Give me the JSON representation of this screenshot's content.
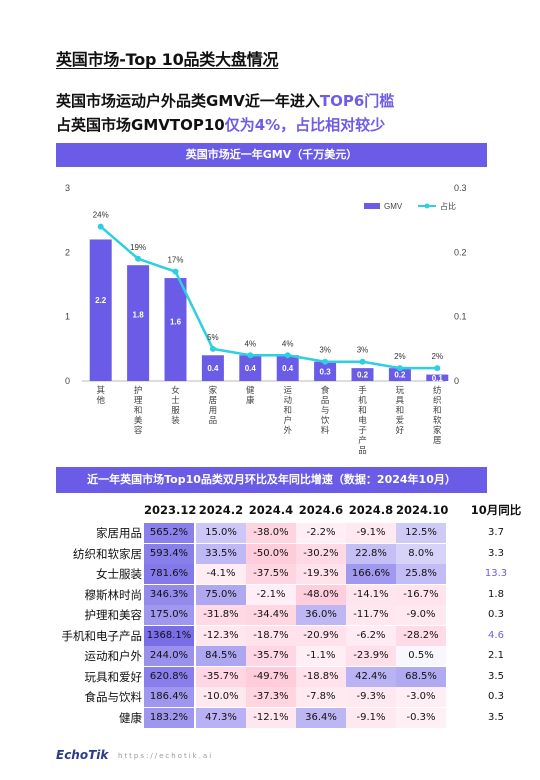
{
  "page_title": "英国市场-Top 10品类大盘情况",
  "headline": {
    "line1_plain": "英国市场运动户外品类GMV近一年进入",
    "line1_highlight": "TOP6门槛",
    "line2_plain": "占英国市场GMVTOP10",
    "line2_highlight": "仅为4%，占比相对较少"
  },
  "chart_band_title": "英国市场近一年GMV（千万美元）",
  "chart_data": {
    "type": "bar",
    "title": "英国市场近一年GMV（千万美元）",
    "categories": [
      "其他",
      "护理和美容",
      "女士服装",
      "家居用品",
      "健康",
      "运动和户外",
      "食品与饮料",
      "手机和电子产品",
      "玩具和爱好",
      "纺织和软家居"
    ],
    "series": [
      {
        "name": "GMV",
        "values": [
          2.2,
          1.8,
          1.6,
          0.4,
          0.4,
          0.4,
          0.3,
          0.2,
          0.2,
          0.1
        ],
        "axis": "left",
        "color": "#6a5ce6"
      },
      {
        "name": "占比",
        "values": [
          0.24,
          0.19,
          0.17,
          0.05,
          0.04,
          0.04,
          0.03,
          0.03,
          0.02,
          0.02
        ],
        "axis": "right",
        "color": "#2ecfe0"
      }
    ],
    "bar_labels": [
      "2.2",
      "1.8",
      "1.6",
      "0.4",
      "0.4",
      "0.4",
      "0.3",
      "0.2",
      "0.2",
      "0.1"
    ],
    "share_labels": [
      "24%",
      "19%",
      "17%",
      "5%",
      "4%",
      "4%",
      "3%",
      "3%",
      "2%",
      "2%"
    ],
    "y_left": {
      "min": 0,
      "max": 3,
      "ticks": [
        "0",
        "1",
        "2",
        "3"
      ]
    },
    "y_right": {
      "min": 0,
      "max": 0.3,
      "ticks": [
        "0",
        "0.1",
        "0.2",
        "0.3"
      ]
    },
    "legend_position": "top-right",
    "grid": false
  },
  "table_band_title": "近一年英国市场Top10品类双月环比及年同比增速（数据：2024年10月）",
  "table": {
    "columns": [
      "2023.12",
      "2024.2",
      "2024.4",
      "2024.6",
      "2024.8",
      "2024.10",
      "10月同比"
    ],
    "rows": [
      {
        "name": "家居用品",
        "values": [
          "565.2%",
          "15.0%",
          "-38.0%",
          "-2.2%",
          "-9.1%",
          "12.5%"
        ],
        "yoy": "3.7"
      },
      {
        "name": "纺织和软家居",
        "values": [
          "593.4%",
          "33.5%",
          "-50.0%",
          "-30.2%",
          "22.8%",
          "8.0%"
        ],
        "yoy": "3.3"
      },
      {
        "name": "女士服装",
        "values": [
          "781.6%",
          "-4.1%",
          "-37.5%",
          "-19.3%",
          "166.6%",
          "25.8%"
        ],
        "yoy": "13.3"
      },
      {
        "name": "穆斯林时尚",
        "values": [
          "346.3%",
          "75.0%",
          "-2.1%",
          "-48.0%",
          "-14.1%",
          "-16.7%"
        ],
        "yoy": "1.8"
      },
      {
        "name": "护理和美容",
        "values": [
          "175.0%",
          "-31.8%",
          "-34.4%",
          "36.0%",
          "-11.7%",
          "-9.0%"
        ],
        "yoy": "0.3"
      },
      {
        "name": "手机和电子产品",
        "values": [
          "1368.1%",
          "-12.3%",
          "-18.7%",
          "-20.9%",
          "-6.2%",
          "-28.2%"
        ],
        "yoy": "4.6"
      },
      {
        "name": "运动和户外",
        "values": [
          "244.0%",
          "84.5%",
          "-35.7%",
          "-1.1%",
          "-23.9%",
          "0.5%"
        ],
        "yoy": "2.1"
      },
      {
        "name": "玩具和爱好",
        "values": [
          "620.8%",
          "-35.7%",
          "-49.7%",
          "-18.8%",
          "42.4%",
          "68.5%"
        ],
        "yoy": "3.5"
      },
      {
        "name": "食品与饮料",
        "values": [
          "186.4%",
          "-10.0%",
          "-37.3%",
          "-7.8%",
          "-9.3%",
          "-3.0%"
        ],
        "yoy": "0.3"
      },
      {
        "name": "健康",
        "values": [
          "183.2%",
          "47.3%",
          "-12.1%",
          "36.4%",
          "-9.1%",
          "-0.3%"
        ],
        "yoy": "3.5"
      }
    ],
    "highlight_yoy_rows": [
      2,
      5
    ],
    "highlight_color": "#6f5ce8"
  },
  "footer": {
    "logo": "EchoTik",
    "url": "https://echotik.ai"
  }
}
